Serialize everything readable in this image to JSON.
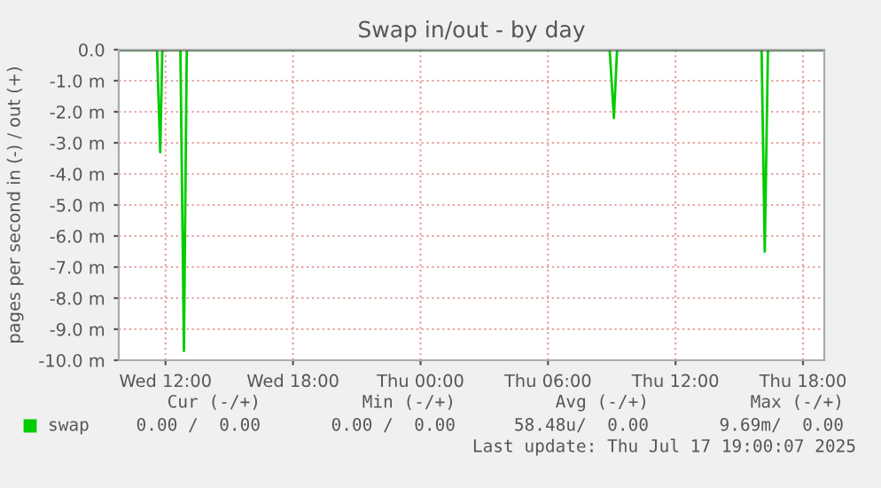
{
  "chart_data": {
    "type": "line",
    "title": "Swap in/out - by day",
    "ylabel": "pages per second in (-) / out (+)",
    "x": [
      "2025-07-16T09:48",
      "2025-07-16T11:36",
      "2025-07-16T11:45",
      "2025-07-16T11:51",
      "2025-07-16T12:42",
      "2025-07-16T12:52",
      "2025-07-16T13:00",
      "2025-07-17T08:54",
      "2025-07-17T09:06",
      "2025-07-17T09:15",
      "2025-07-17T16:03",
      "2025-07-17T16:12",
      "2025-07-17T16:21",
      "2025-07-17T19:00"
    ],
    "series": [
      {
        "name": "swap",
        "color": "#00cc00",
        "values": [
          0,
          0,
          -3.3,
          0,
          0,
          -9.7,
          0,
          0,
          -2.2,
          0,
          0,
          -6.5,
          0,
          0
        ]
      }
    ],
    "xlim": [
      "2025-07-16T09:48",
      "2025-07-17T19:00"
    ],
    "xticks": [
      {
        "value": "2025-07-16T12:00",
        "label": "Wed 12:00"
      },
      {
        "value": "2025-07-16T18:00",
        "label": "Wed 18:00"
      },
      {
        "value": "2025-07-17T00:00",
        "label": "Thu 00:00"
      },
      {
        "value": "2025-07-17T06:00",
        "label": "Thu 06:00"
      },
      {
        "value": "2025-07-17T12:00",
        "label": "Thu 12:00"
      },
      {
        "value": "2025-07-17T18:00",
        "label": "Thu 18:00"
      }
    ],
    "ylim": [
      -10,
      0
    ],
    "yticks": [
      {
        "value": 0,
        "label": "0.0"
      },
      {
        "value": -1,
        "label": "-1.0 m"
      },
      {
        "value": -2,
        "label": "-2.0 m"
      },
      {
        "value": -3,
        "label": "-3.0 m"
      },
      {
        "value": -4,
        "label": "-4.0 m"
      },
      {
        "value": -5,
        "label": "-5.0 m"
      },
      {
        "value": -6,
        "label": "-6.0 m"
      },
      {
        "value": -7,
        "label": "-7.0 m"
      },
      {
        "value": -8,
        "label": "-8.0 m"
      },
      {
        "value": -9,
        "label": "-9.0 m"
      },
      {
        "value": -10,
        "label": "-10.0 m"
      }
    ],
    "ref_lines": [
      {
        "axis": "y",
        "value": 0,
        "color": "#000000"
      }
    ],
    "grid": true,
    "legend": "bottom left",
    "annotations": [
      "Cur (-/+)",
      "Min (-/+)",
      "Avg (-/+)",
      "Max (-/+)",
      "0.00 /  0.00",
      "0.00 /  0.00",
      "58.48u/  0.00",
      "9.69m/  0.00",
      "Last update: Thu Jul 17 19:00:07 2025"
    ]
  }
}
